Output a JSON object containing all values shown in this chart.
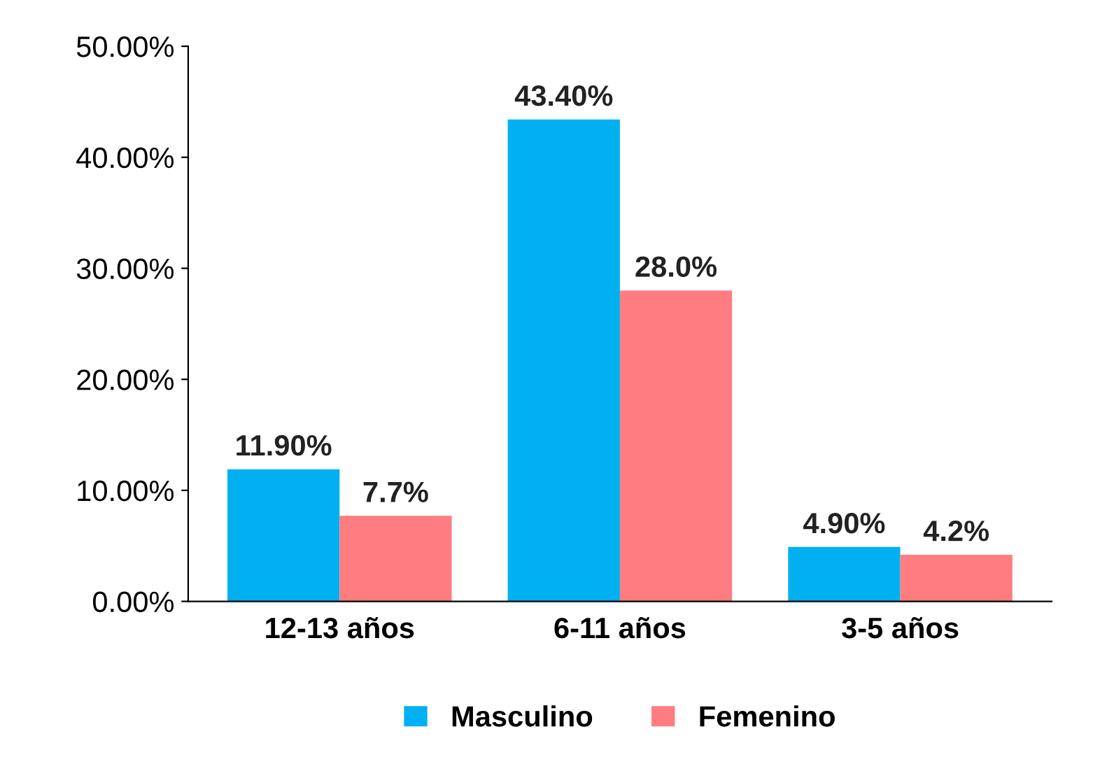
{
  "chart_data": {
    "type": "bar",
    "categories": [
      "12-13 años",
      "6-11 años",
      "3-5 años"
    ],
    "series": [
      {
        "name": "Masculino",
        "color": "#00b0f0",
        "values": [
          11.9,
          43.4,
          4.9
        ],
        "value_labels": [
          "11.90%",
          "43.40%",
          "4.90%"
        ]
      },
      {
        "name": "Femenino",
        "color": "#ff7c80",
        "values": [
          7.7,
          28.0,
          4.2
        ],
        "value_labels": [
          "7.7%",
          "28.0%",
          "4.2%"
        ]
      }
    ],
    "ylim": [
      0,
      50
    ],
    "yticks": [
      {
        "value": 0,
        "label": "0.00%"
      },
      {
        "value": 10,
        "label": "10.00%"
      },
      {
        "value": 20,
        "label": "20.00%"
      },
      {
        "value": 30,
        "label": "30.00%"
      },
      {
        "value": 40,
        "label": "40.00%"
      },
      {
        "value": 50,
        "label": "50.00%"
      }
    ],
    "grid": false,
    "legend": "bottom"
  }
}
